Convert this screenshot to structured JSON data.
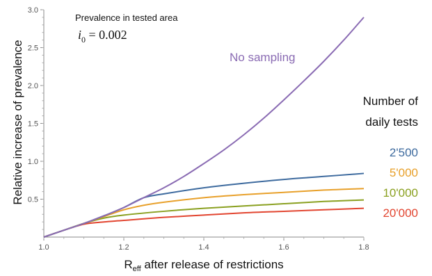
{
  "chart_data": {
    "type": "line",
    "xlabel": "R",
    "xlabel_sub": "eff",
    "xlabel_rest": " after release of restrictions",
    "ylabel": "Relative increase of prevalence",
    "xlim": [
      1.0,
      1.8
    ],
    "ylim": [
      0.0,
      3.0
    ],
    "xticks": [
      "1.0",
      "1.2",
      "1.4",
      "1.6",
      "1.8"
    ],
    "yticks": [
      "0.5",
      "1.0",
      "1.5",
      "2.0",
      "2.5",
      "3.0"
    ],
    "annotation": {
      "text": "Prevalence in tested area",
      "math_var": "i",
      "math_sub": "0",
      "math_rest": " = 0.002"
    },
    "legend_title": [
      "Number of",
      "daily tests"
    ],
    "series": [
      {
        "name": "No sampling",
        "color": "#8a6bb3",
        "x": [
          1.0,
          1.05,
          1.1,
          1.15,
          1.2,
          1.25,
          1.3,
          1.35,
          1.4,
          1.45,
          1.5,
          1.55,
          1.6,
          1.65,
          1.7,
          1.75,
          1.8
        ],
        "y": [
          0.0,
          0.09,
          0.18,
          0.28,
          0.39,
          0.52,
          0.65,
          0.8,
          0.97,
          1.15,
          1.35,
          1.57,
          1.81,
          2.06,
          2.32,
          2.6,
          2.9
        ]
      },
      {
        "name": "2'500",
        "color": "#3d6a9e",
        "x": [
          1.0,
          1.05,
          1.1,
          1.15,
          1.2,
          1.25,
          1.3,
          1.4,
          1.5,
          1.6,
          1.7,
          1.8
        ],
        "y": [
          0.0,
          0.09,
          0.18,
          0.28,
          0.39,
          0.52,
          0.57,
          0.65,
          0.71,
          0.76,
          0.8,
          0.84
        ]
      },
      {
        "name": "5'000",
        "color": "#e8a02a",
        "x": [
          1.0,
          1.05,
          1.1,
          1.15,
          1.2,
          1.25,
          1.3,
          1.4,
          1.5,
          1.6,
          1.7,
          1.8
        ],
        "y": [
          0.0,
          0.09,
          0.18,
          0.27,
          0.36,
          0.42,
          0.46,
          0.52,
          0.56,
          0.59,
          0.62,
          0.64
        ]
      },
      {
        "name": "10'000",
        "color": "#8aa020",
        "x": [
          1.0,
          1.05,
          1.1,
          1.15,
          1.2,
          1.3,
          1.4,
          1.5,
          1.6,
          1.7,
          1.8
        ],
        "y": [
          0.0,
          0.09,
          0.18,
          0.25,
          0.29,
          0.34,
          0.38,
          0.41,
          0.44,
          0.47,
          0.49
        ]
      },
      {
        "name": "20'000",
        "color": "#e24530",
        "x": [
          1.0,
          1.05,
          1.1,
          1.15,
          1.2,
          1.3,
          1.4,
          1.5,
          1.6,
          1.7,
          1.8
        ],
        "y": [
          0.0,
          0.09,
          0.17,
          0.2,
          0.22,
          0.26,
          0.29,
          0.32,
          0.34,
          0.36,
          0.38
        ]
      }
    ]
  }
}
